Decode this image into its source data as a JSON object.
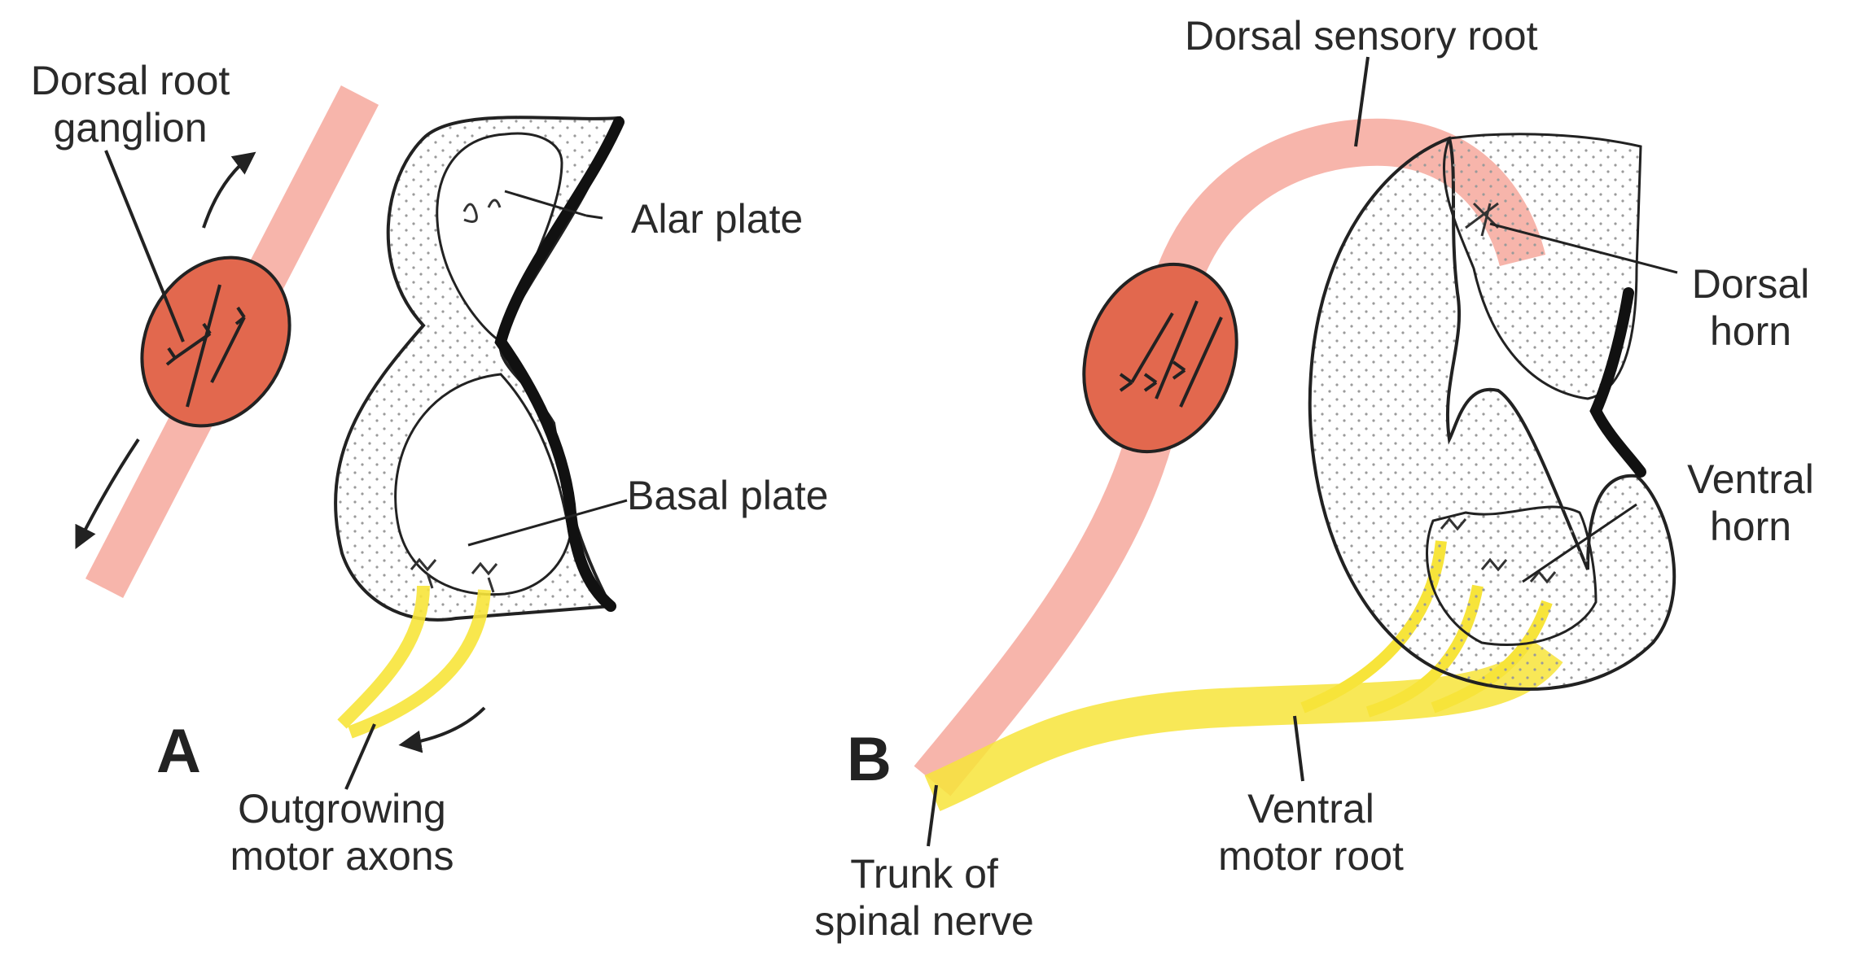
{
  "panels": {
    "a": {
      "letter": "A"
    },
    "b": {
      "letter": "B"
    }
  },
  "labels": {
    "dorsal_root_ganglion": [
      "Dorsal root",
      "ganglion"
    ],
    "alar_plate": "Alar plate",
    "basal_plate": "Basal plate",
    "outgrowing_motor_axons": [
      "Outgrowing",
      "motor axons"
    ],
    "dorsal_sensory_root": "Dorsal sensory root",
    "dorsal_horn": [
      "Dorsal",
      "horn"
    ],
    "ventral_horn": [
      "Ventral",
      "horn"
    ],
    "ventral_motor_root": [
      "Ventral",
      "motor root"
    ],
    "trunk_of_spinal_nerve": [
      "Trunk of",
      "spinal nerve"
    ]
  },
  "colors": {
    "sensory_root": "#f6a89c",
    "ganglion_fill": "#e2684e",
    "motor_axons": "#f7e43a",
    "outline": "#222222",
    "stipple": "#9a9a9a"
  }
}
